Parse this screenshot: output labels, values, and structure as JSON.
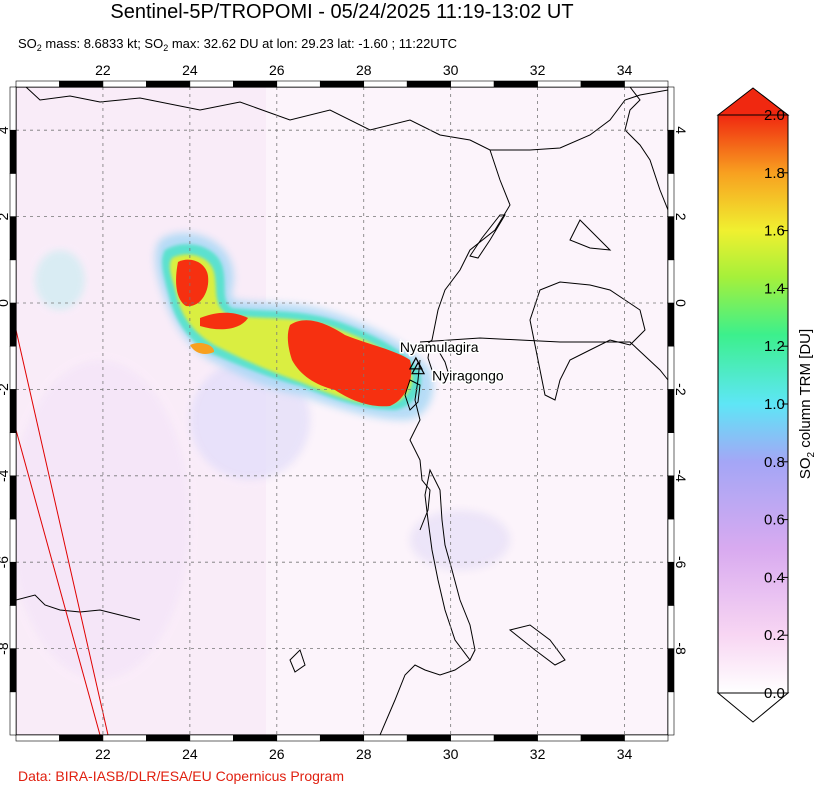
{
  "title": "Sentinel-5P/TROPOMI - 05/24/2025 11:19-13:02 UT",
  "subtitle": {
    "parts": [
      "SO",
      "2",
      " mass: 8.6833 kt; SO",
      "2",
      " max: 32.62 DU at lon: 29.23 lat: -1.60 ; 11:22UTC"
    ]
  },
  "credit": "Data: BIRA-IASB/DLR/ESA/EU Copernicus Program",
  "map": {
    "lon_range": [
      20,
      35
    ],
    "lat_range": [
      -10,
      5
    ],
    "lon_ticks": [
      22,
      24,
      26,
      28,
      30,
      32,
      34
    ],
    "lat_ticks": [
      4,
      2,
      0,
      -2,
      -4,
      -6,
      -8
    ],
    "lon_tick_labels": [
      "22",
      "24",
      "26",
      "28",
      "30",
      "32",
      "34"
    ],
    "lat_tick_labels": [
      "4",
      "2",
      "0",
      "-2",
      "-4",
      "-6",
      "-8"
    ],
    "volcanoes": [
      {
        "name": "Nyamulagira",
        "lon": 29.2,
        "lat": -1.41
      },
      {
        "name": "Nyiragongo",
        "lon": 29.25,
        "lat": -1.52
      }
    ]
  },
  "colorbar": {
    "label_parts": [
      "SO",
      "2",
      " column TRM [DU]"
    ],
    "ticks": [
      "0.0",
      "0.2",
      "0.4",
      "0.6",
      "0.8",
      "1.0",
      "1.2",
      "1.4",
      "1.6",
      "1.8",
      "2.0"
    ],
    "min": 0,
    "max": 2.0,
    "colors": [
      "#ffffff",
      "#f6c8f2",
      "#d8a8f0",
      "#a0a8f8",
      "#50e0f8",
      "#40f090",
      "#a0f040",
      "#f0f030",
      "#f8a020",
      "#f03010"
    ]
  }
}
